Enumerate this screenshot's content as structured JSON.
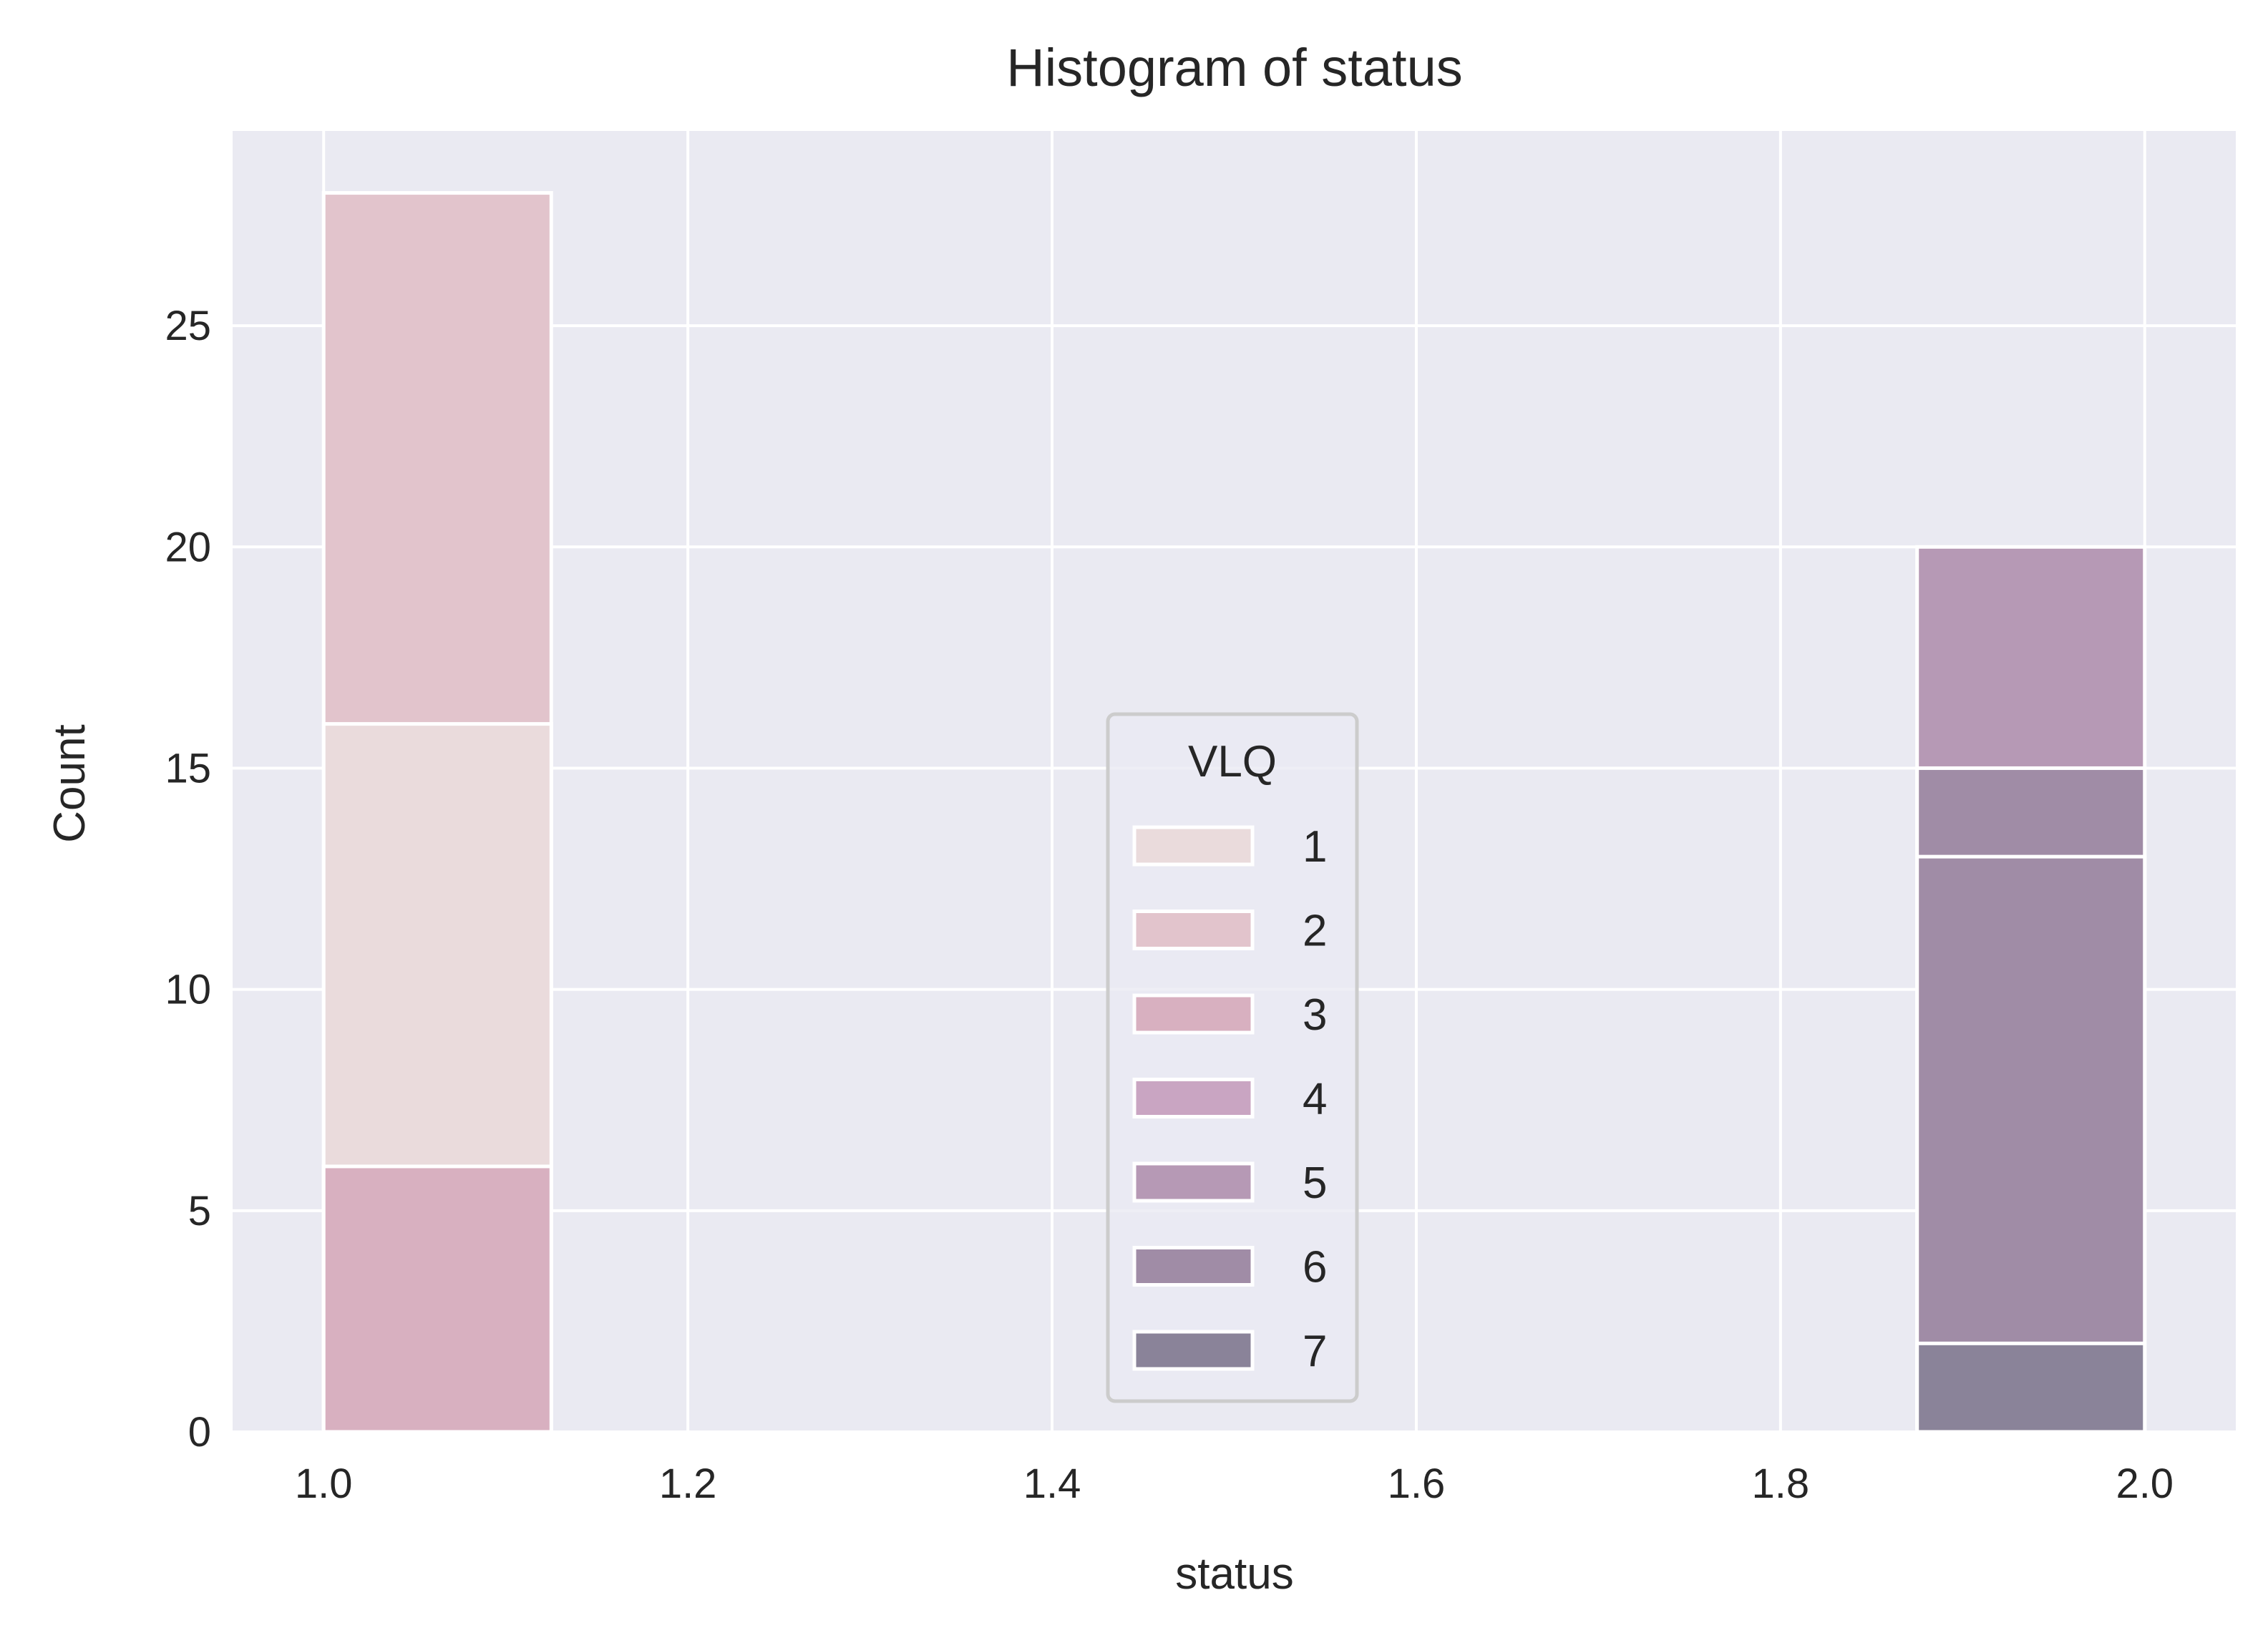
{
  "chart_data": {
    "type": "bar",
    "title": "Histogram of status",
    "xlabel": "status",
    "ylabel": "Count",
    "xlim": [
      0.95,
      2.05
    ],
    "ylim": [
      0,
      29.4
    ],
    "xticks": [
      1.0,
      1.2,
      1.4,
      1.6,
      1.8,
      2.0
    ],
    "xtick_labels": [
      "1.0",
      "1.2",
      "1.4",
      "1.6",
      "1.8",
      "2.0"
    ],
    "yticks": [
      0,
      5,
      10,
      15,
      20,
      25
    ],
    "ytick_labels": [
      "0",
      "5",
      "10",
      "15",
      "20",
      "25"
    ],
    "grid": true,
    "legend": {
      "title": "VLQ",
      "placement": "lower-center",
      "entries": [
        "1",
        "2",
        "3",
        "4",
        "5",
        "6",
        "7"
      ]
    },
    "bin_width": 0.125,
    "series": [
      {
        "name": "1",
        "color": "#eadbdc",
        "bins": [
          {
            "x0": 1.0,
            "count": 16
          }
        ]
      },
      {
        "name": "2",
        "color": "#e2c4cc",
        "bins": [
          {
            "x0": 1.0,
            "count": 28
          }
        ]
      },
      {
        "name": "3",
        "color": "#d8b0c0",
        "bins": [
          {
            "x0": 1.0,
            "count": 6
          }
        ]
      },
      {
        "name": "4",
        "color": "#c9a5c2",
        "bins": []
      },
      {
        "name": "5",
        "color": "#b699b5",
        "bins": [
          {
            "x0": 1.875,
            "count": 20
          }
        ]
      },
      {
        "name": "6",
        "color": "#a08ca6",
        "bins": [
          {
            "x0": 1.875,
            "count": 15
          },
          {
            "x0": 1.875,
            "count": 13
          }
        ]
      },
      {
        "name": "7",
        "color": "#8a8399",
        "bins": [
          {
            "x0": 1.875,
            "count": 2
          }
        ]
      }
    ]
  }
}
